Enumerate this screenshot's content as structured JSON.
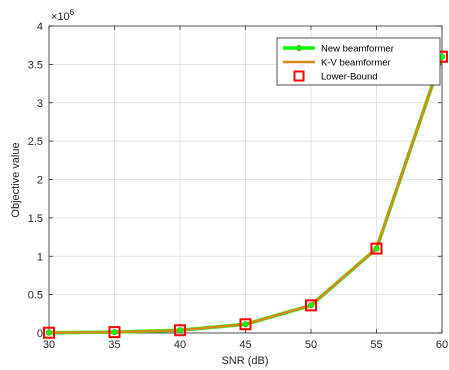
{
  "chart_data": {
    "type": "line",
    "xlabel": "SNR (dB)",
    "ylabel": "Objective value",
    "y_multiplier_label": "×10",
    "y_multiplier_exponent": "6",
    "xlim": [
      30,
      60
    ],
    "ylim": [
      0,
      4
    ],
    "xticks": [
      30,
      35,
      40,
      45,
      50,
      55,
      60
    ],
    "yticks": [
      0,
      0.5,
      1,
      1.5,
      2,
      2.5,
      3,
      3.5,
      4
    ],
    "ytick_labels": [
      "0",
      "0.5",
      "1",
      "1.5",
      "2",
      "2.5",
      "3",
      "3.5",
      "4"
    ],
    "grid": true,
    "legend_position": "top-right",
    "x": [
      30,
      35,
      40,
      45,
      50,
      55,
      60
    ],
    "series": [
      {
        "name": "New beamformer",
        "values": [
          0.0036,
          0.0114,
          0.036,
          0.114,
          0.36,
          1.1,
          3.6
        ],
        "color": "#00ff00",
        "style": "line-circle"
      },
      {
        "name": "K-V beamformer",
        "values": [
          0.0036,
          0.0114,
          0.036,
          0.114,
          0.36,
          1.1,
          3.6
        ],
        "color": "#d9891a",
        "style": "line"
      },
      {
        "name": "Lower-Bound",
        "values": [
          0.0036,
          0.0114,
          0.036,
          0.114,
          0.36,
          1.1,
          3.6
        ],
        "color": "#ff0000",
        "style": "square"
      }
    ]
  }
}
